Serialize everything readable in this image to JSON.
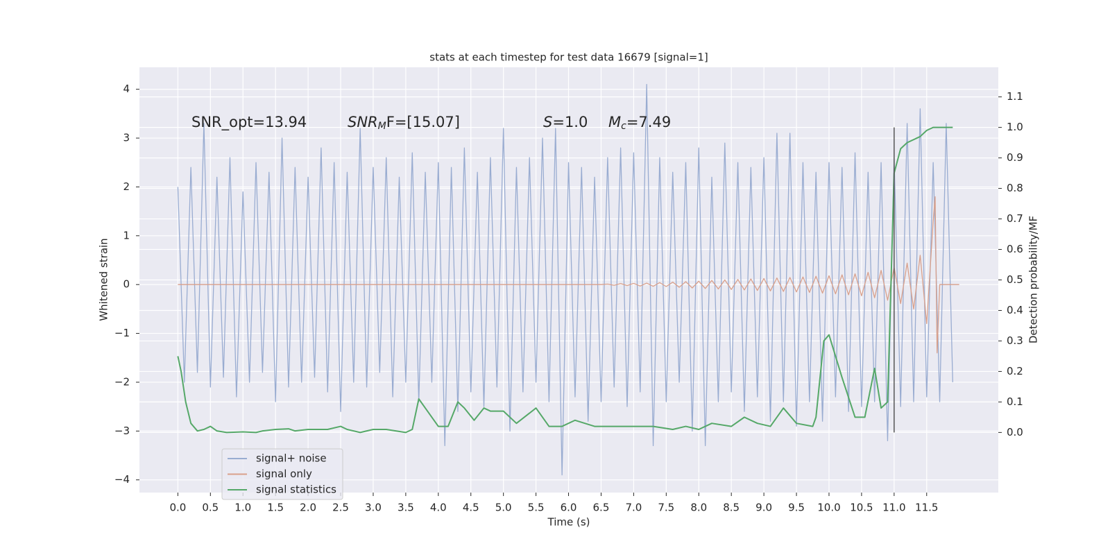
{
  "chart_data": {
    "type": "line",
    "title": "stats at each timestep for test data 16679 [signal=1]",
    "xlabel": "Time (s)",
    "ylabel": "Whitened strain",
    "y2label": "Detection probability/MF",
    "annotations": [
      "SNR_opt=13.94",
      {
        "italic": "SNR",
        "sub": "M",
        "tail": "F=[15.07]"
      },
      {
        "italic": "S",
        "tail": "=1.0"
      },
      {
        "italic": "M",
        "sub": "c",
        "tail": "=7.49"
      }
    ],
    "xlim": [
      -0.59,
      12.6
    ],
    "ylim": [
      -4.26,
      4.45
    ],
    "y2lim": [
      -0.197,
      1.197
    ],
    "xticks": [
      {
        "value": 0,
        "label": "0.0"
      },
      {
        "value": 0.5,
        "label": "0.5"
      },
      {
        "value": 1,
        "label": "1.0"
      },
      {
        "value": 1.5,
        "label": "1.5"
      },
      {
        "value": 2,
        "label": "2.0"
      },
      {
        "value": 2.5,
        "label": "2.5"
      },
      {
        "value": 3,
        "label": "3.0"
      },
      {
        "value": 3.5,
        "label": "3.5"
      },
      {
        "value": 4,
        "label": "4.0"
      },
      {
        "value": 4.5,
        "label": "4.5"
      },
      {
        "value": 5,
        "label": "5.0"
      },
      {
        "value": 5.5,
        "label": "5.5"
      },
      {
        "value": 6,
        "label": "6.0"
      },
      {
        "value": 6.5,
        "label": "6.5"
      },
      {
        "value": 7,
        "label": "7.0"
      },
      {
        "value": 7.5,
        "label": "7.5"
      },
      {
        "value": 8,
        "label": "8.0"
      },
      {
        "value": 8.5,
        "label": "8.5"
      },
      {
        "value": 9,
        "label": "9.0"
      },
      {
        "value": 9.5,
        "label": "9.5"
      },
      {
        "value": 10,
        "label": "10.0"
      },
      {
        "value": 10.5,
        "label": "10.5"
      },
      {
        "value": 11,
        "label": "11.0"
      },
      {
        "value": 11.5,
        "label": "11.5"
      }
    ],
    "yticks": [
      {
        "value": -4,
        "label": "−4"
      },
      {
        "value": -3,
        "label": "−3"
      },
      {
        "value": -2,
        "label": "−2"
      },
      {
        "value": -1,
        "label": "−1"
      },
      0,
      1,
      2,
      3,
      4
    ],
    "y2ticks": [
      {
        "value": 0,
        "label": "0.0"
      },
      {
        "value": 0.1,
        "label": "0.1"
      },
      {
        "value": 0.2,
        "label": "0.2"
      },
      {
        "value": 0.3,
        "label": "0.3"
      },
      {
        "value": 0.4,
        "label": "0.4"
      },
      {
        "value": 0.5,
        "label": "0.5"
      },
      {
        "value": 0.6,
        "label": "0.6"
      },
      {
        "value": 0.7,
        "label": "0.7"
      },
      {
        "value": 0.8,
        "label": "0.8"
      },
      {
        "value": 0.9,
        "label": "0.9"
      },
      {
        "value": 1,
        "label": "1.0"
      },
      {
        "value": 1.1,
        "label": "1.1"
      }
    ],
    "grid": true,
    "legend": "lower left",
    "vline": {
      "x": 11.0,
      "y2": [
        0,
        1.0
      ],
      "color": "#555555"
    },
    "series": [
      {
        "name": "signal+ noise",
        "color": "#99acd1",
        "x": [
          0.0,
          0.1,
          0.2,
          0.3,
          0.4,
          0.5,
          0.6,
          0.7,
          0.8,
          0.9,
          1.0,
          1.1,
          1.2,
          1.3,
          1.4,
          1.5,
          1.6,
          1.7,
          1.8,
          1.9,
          2.0,
          2.1,
          2.2,
          2.3,
          2.4,
          2.5,
          2.6,
          2.7,
          2.8,
          2.9,
          3.0,
          3.1,
          3.2,
          3.3,
          3.4,
          3.5,
          3.6,
          3.7,
          3.8,
          3.9,
          4.0,
          4.1,
          4.2,
          4.3,
          4.4,
          4.5,
          4.6,
          4.7,
          4.8,
          4.9,
          5.0,
          5.1,
          5.2,
          5.3,
          5.4,
          5.5,
          5.6,
          5.7,
          5.8,
          5.9,
          6.0,
          6.1,
          6.2,
          6.3,
          6.4,
          6.5,
          6.6,
          6.7,
          6.8,
          6.9,
          7.0,
          7.1,
          7.2,
          7.3,
          7.4,
          7.5,
          7.6,
          7.7,
          7.8,
          7.9,
          8.0,
          8.1,
          8.2,
          8.3,
          8.4,
          8.5,
          8.6,
          8.7,
          8.8,
          8.9,
          9.0,
          9.1,
          9.2,
          9.3,
          9.4,
          9.5,
          9.6,
          9.7,
          9.8,
          9.9,
          10.0,
          10.1,
          10.2,
          10.3,
          10.4,
          10.5,
          10.6,
          10.7,
          10.8,
          10.9,
          11.0,
          11.1,
          11.2,
          11.3,
          11.4,
          11.5,
          11.6,
          11.7,
          11.8,
          11.9
        ],
        "values": [
          2.0,
          -2.0,
          2.4,
          -1.8,
          3.3,
          -2.1,
          2.2,
          -1.9,
          2.6,
          -2.3,
          1.9,
          -2.0,
          2.5,
          -1.8,
          2.3,
          -2.4,
          3.0,
          -2.1,
          2.4,
          -2.0,
          2.2,
          -1.9,
          2.8,
          -2.2,
          2.5,
          -2.6,
          2.3,
          -2.0,
          3.2,
          -2.1,
          2.4,
          -1.8,
          2.6,
          -2.3,
          2.2,
          -2.0,
          2.7,
          -2.4,
          2.3,
          -2.0,
          2.5,
          -3.3,
          2.4,
          -2.6,
          2.8,
          -2.2,
          2.3,
          -2.5,
          2.6,
          -2.1,
          3.2,
          -3.0,
          2.4,
          -2.2,
          2.6,
          -2.0,
          3.0,
          -2.4,
          3.2,
          -3.9,
          2.5,
          -2.3,
          2.4,
          -2.8,
          2.2,
          -2.4,
          2.6,
          -2.1,
          2.8,
          -2.5,
          2.7,
          -2.2,
          4.1,
          -3.3,
          2.6,
          -2.4,
          2.3,
          -2.0,
          2.5,
          -3.0,
          2.8,
          -3.3,
          2.2,
          -2.4,
          2.9,
          -2.2,
          2.5,
          -2.6,
          2.4,
          -2.3,
          2.6,
          -2.8,
          3.1,
          -2.4,
          3.1,
          -2.9,
          2.5,
          -2.4,
          2.3,
          -2.8,
          2.5,
          -2.3,
          2.4,
          -2.6,
          2.7,
          -2.5,
          2.3,
          -2.4,
          2.5,
          -3.2,
          2.6,
          -2.5,
          3.3,
          -2.4,
          3.6,
          -2.3,
          2.5,
          -2.4,
          3.3,
          -2.0
        ]
      },
      {
        "name": "signal only",
        "color": "#d9a08b",
        "x": [
          0.0,
          6.5,
          6.6,
          6.7,
          6.8,
          6.9,
          7.0,
          7.1,
          7.2,
          7.3,
          7.4,
          7.5,
          7.6,
          7.7,
          7.8,
          7.9,
          8.0,
          8.1,
          8.2,
          8.3,
          8.4,
          8.5,
          8.6,
          8.7,
          8.8,
          8.9,
          9.0,
          9.1,
          9.2,
          9.3,
          9.4,
          9.5,
          9.6,
          9.7,
          9.8,
          9.9,
          10.0,
          10.1,
          10.2,
          10.3,
          10.4,
          10.5,
          10.6,
          10.7,
          10.8,
          10.9,
          11.0,
          11.1,
          11.2,
          11.3,
          11.4,
          11.5,
          11.6,
          11.63,
          11.66,
          11.7,
          12.0
        ],
        "values": [
          0,
          0,
          0.01,
          -0.015,
          0.02,
          -0.02,
          0.025,
          -0.03,
          0.03,
          -0.035,
          0.04,
          -0.04,
          0.05,
          -0.055,
          0.06,
          -0.07,
          0.07,
          -0.08,
          0.085,
          -0.09,
          0.095,
          -0.1,
          0.105,
          -0.11,
          0.115,
          -0.12,
          0.125,
          -0.13,
          0.135,
          -0.14,
          0.145,
          -0.15,
          0.155,
          -0.16,
          0.17,
          -0.175,
          0.18,
          -0.19,
          0.2,
          -0.21,
          0.22,
          -0.23,
          0.25,
          -0.27,
          0.29,
          -0.32,
          0.35,
          -0.39,
          0.44,
          -0.5,
          0.6,
          -0.8,
          1.3,
          1.8,
          -1.4,
          0,
          0
        ]
      },
      {
        "name": "signal statistics",
        "color": "#55a868",
        "axis": "y2",
        "x": [
          0.0,
          0.05,
          0.12,
          0.2,
          0.3,
          0.4,
          0.5,
          0.6,
          0.75,
          1.0,
          1.2,
          1.3,
          1.5,
          1.7,
          1.8,
          2.0,
          2.3,
          2.5,
          2.6,
          2.8,
          3.0,
          3.2,
          3.5,
          3.6,
          3.7,
          3.8,
          4.0,
          4.15,
          4.3,
          4.4,
          4.55,
          4.7,
          4.8,
          5.0,
          5.2,
          5.5,
          5.7,
          5.9,
          6.1,
          6.4,
          6.6,
          7.0,
          7.3,
          7.6,
          7.8,
          8.0,
          8.2,
          8.5,
          8.7,
          8.9,
          9.1,
          9.3,
          9.5,
          9.75,
          9.8,
          9.92,
          10.0,
          10.2,
          10.4,
          10.55,
          10.7,
          10.8,
          10.9,
          11.0,
          11.1,
          11.2,
          11.4,
          11.5,
          11.6,
          11.9
        ],
        "values": [
          0.25,
          0.2,
          0.1,
          0.03,
          0.005,
          0.01,
          0.02,
          0.005,
          0.0,
          0.002,
          0.0,
          0.005,
          0.01,
          0.012,
          0.005,
          0.01,
          0.01,
          0.02,
          0.01,
          0.0,
          0.01,
          0.01,
          0.0,
          0.01,
          0.11,
          0.08,
          0.02,
          0.02,
          0.1,
          0.08,
          0.04,
          0.08,
          0.07,
          0.07,
          0.03,
          0.08,
          0.02,
          0.02,
          0.04,
          0.02,
          0.02,
          0.02,
          0.02,
          0.01,
          0.02,
          0.01,
          0.03,
          0.02,
          0.05,
          0.03,
          0.02,
          0.08,
          0.03,
          0.02,
          0.05,
          0.3,
          0.32,
          0.18,
          0.05,
          0.05,
          0.21,
          0.08,
          0.1,
          0.85,
          0.93,
          0.95,
          0.97,
          0.99,
          1.0,
          1.0
        ]
      }
    ]
  }
}
